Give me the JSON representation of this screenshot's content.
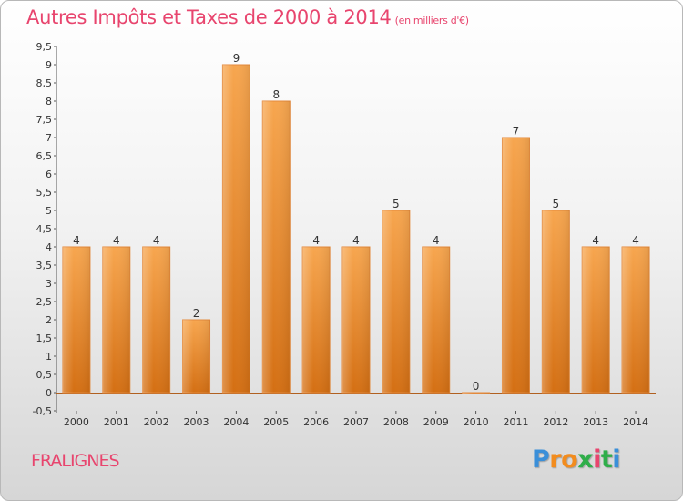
{
  "header": {
    "title": "Autres Impôts et Taxes de 2000 à 2014",
    "unit": "(en milliers d'€)"
  },
  "footer": {
    "location": "FRALIGNES",
    "brand_letters": [
      "P",
      "r",
      "o",
      "x",
      "i",
      "t",
      "i"
    ],
    "brand_colors": [
      "#3a8fd9",
      "#f28c1e",
      "#f28c1e",
      "#2fae4a",
      "#e8456e",
      "#2fae4a",
      "#3a8fd9"
    ]
  },
  "chart_data": {
    "type": "bar",
    "categories": [
      "2000",
      "2001",
      "2002",
      "2003",
      "2004",
      "2005",
      "2006",
      "2007",
      "2008",
      "2009",
      "2010",
      "2011",
      "2012",
      "2013",
      "2014"
    ],
    "values": [
      4,
      4,
      4,
      2,
      9,
      8,
      4,
      4,
      5,
      4,
      0,
      7,
      5,
      4,
      4
    ],
    "title": "Autres Impôts et Taxes de 2000 à 2014",
    "subtitle": "(en milliers d'€)",
    "xlabel": "",
    "ylabel": "",
    "ylim": [
      -0.5,
      9.5
    ],
    "yticks": [
      "-0,5",
      "0",
      "0,5",
      "1",
      "1,5",
      "2",
      "2,5",
      "3",
      "3,5",
      "4",
      "4,5",
      "5",
      "5,5",
      "6",
      "6,5",
      "7",
      "7,5",
      "8",
      "8,5",
      "9",
      "9,5"
    ],
    "grid": false,
    "bar_color": "#f28c1e"
  }
}
